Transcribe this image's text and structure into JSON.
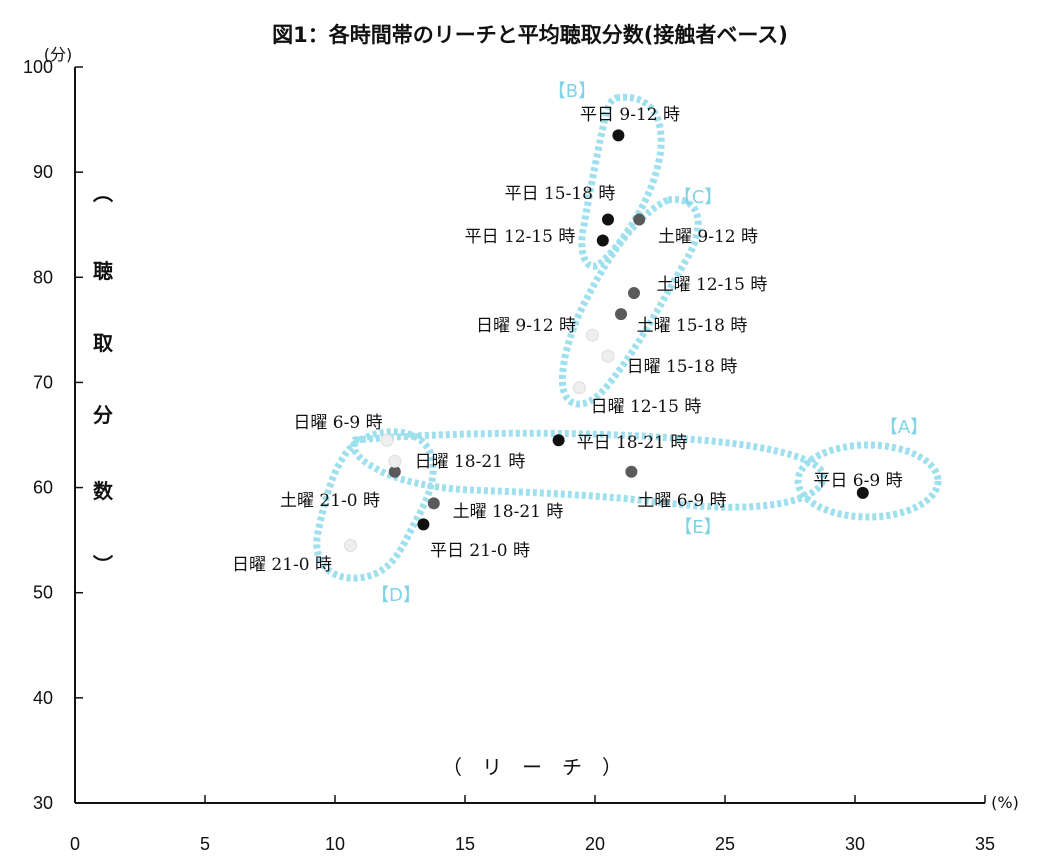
{
  "chart_data": {
    "type": "scatter",
    "title": "図1：各時間帯のリーチと平均聴取分数(接触者ベース)",
    "xlabel": "（　リ　ー　チ　）",
    "x_unit": "(%)",
    "ylabel": [
      "︵",
      "聴",
      "取",
      "分",
      "数",
      "︶"
    ],
    "y_unit": "(分)",
    "xlim": [
      0,
      35
    ],
    "ylim": [
      30,
      100
    ],
    "x_ticks": [
      "0",
      "5",
      "10",
      "15",
      "20",
      "25",
      "30",
      "35"
    ],
    "y_ticks": [
      "30",
      "40",
      "50",
      "60",
      "70",
      "80",
      "90",
      "100"
    ],
    "grid": false,
    "groups": [
      {
        "label": "【A】",
        "color": "#7fd3e6"
      },
      {
        "label": "【B】",
        "color": "#7fd3e6"
      },
      {
        "label": "【C】",
        "color": "#7fd3e6"
      },
      {
        "label": "【D】",
        "color": "#7fd3e6"
      },
      {
        "label": "【E】",
        "color": "#7fd3e6"
      }
    ],
    "points": [
      {
        "label": "平日 9-12 時",
        "x": 20.9,
        "y": 93.5,
        "day": "weekday"
      },
      {
        "label": "平日 15-18 時",
        "x": 20.5,
        "y": 85.5,
        "day": "weekday"
      },
      {
        "label": "平日 12-15 時",
        "x": 20.3,
        "y": 83.5,
        "day": "weekday"
      },
      {
        "label": "平日 18-21 時",
        "x": 18.6,
        "y": 64.5,
        "day": "weekday"
      },
      {
        "label": "平日 6-9 時",
        "x": 30.3,
        "y": 59.5,
        "day": "weekday"
      },
      {
        "label": "平日 21-0 時",
        "x": 13.4,
        "y": 56.5,
        "day": "weekday"
      },
      {
        "label": "土曜 9-12 時",
        "x": 21.7,
        "y": 85.5,
        "day": "saturday"
      },
      {
        "label": "土曜 12-15 時",
        "x": 21.5,
        "y": 78.5,
        "day": "saturday"
      },
      {
        "label": "土曜 15-18 時",
        "x": 21.0,
        "y": 76.5,
        "day": "saturday"
      },
      {
        "label": "土曜 6-9 時",
        "x": 21.4,
        "y": 61.5,
        "day": "saturday"
      },
      {
        "label": "土曜 18-21 時",
        "x": 13.8,
        "y": 58.5,
        "day": "saturday"
      },
      {
        "label": "土曜 21-0 時",
        "x": 12.3,
        "y": 61.5,
        "day": "saturday"
      },
      {
        "label": "日曜 9-12 時",
        "x": 19.9,
        "y": 74.5,
        "day": "sunday"
      },
      {
        "label": "日曜 15-18 時",
        "x": 20.5,
        "y": 72.5,
        "day": "sunday"
      },
      {
        "label": "日曜 12-15 時",
        "x": 19.4,
        "y": 69.5,
        "day": "sunday"
      },
      {
        "label": "日曜 6-9 時",
        "x": 12.0,
        "y": 64.5,
        "day": "sunday"
      },
      {
        "label": "日曜 18-21 時",
        "x": 12.3,
        "y": 62.5,
        "day": "sunday"
      },
      {
        "label": "日曜 21-0 時",
        "x": 10.6,
        "y": 54.5,
        "day": "sunday"
      }
    ],
    "marker_colors": {
      "weekday": "#111111",
      "saturday": "#5a5a5a",
      "sunday": "#eeeeee"
    }
  }
}
